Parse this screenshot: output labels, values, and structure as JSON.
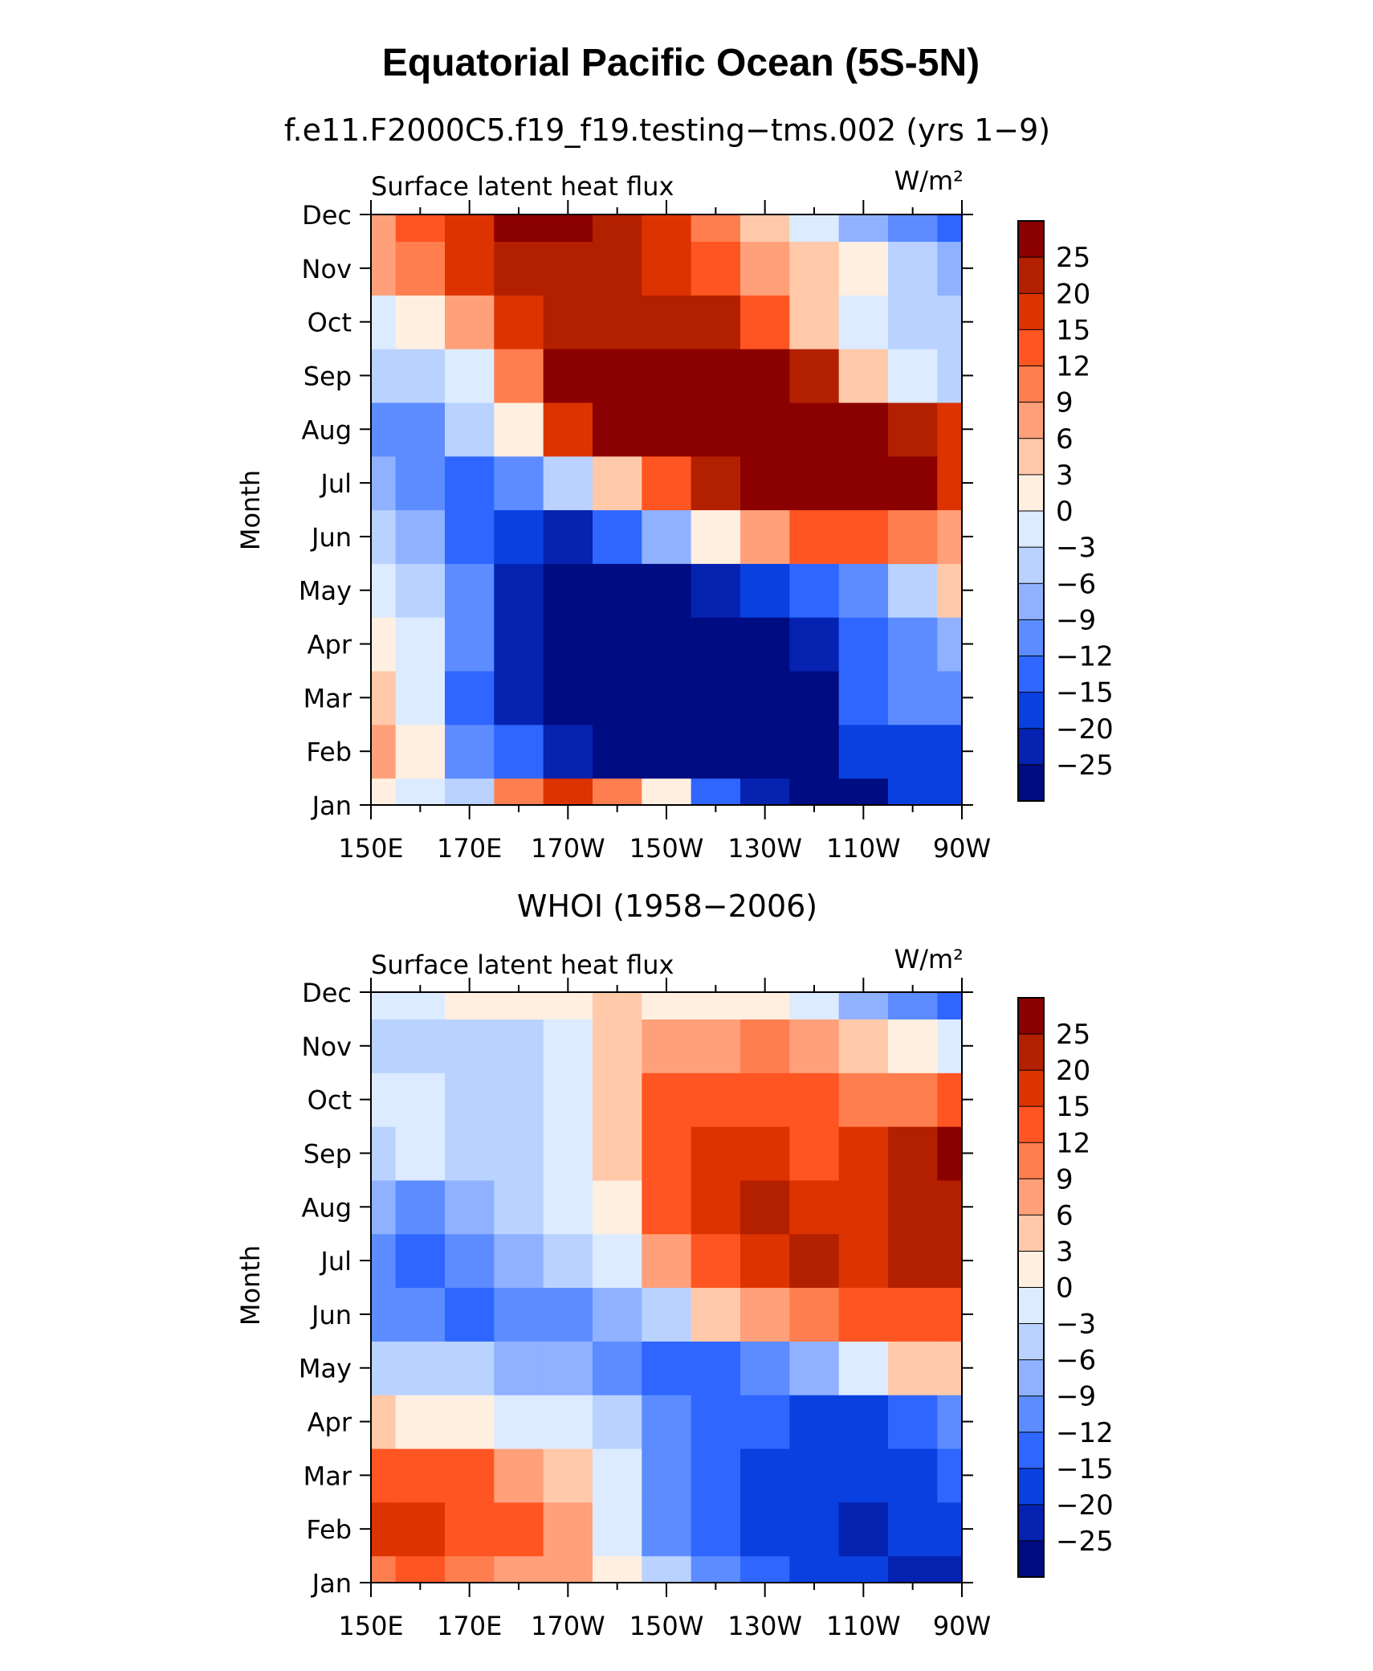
{
  "title": "Equatorial Pacific Ocean (5S-5N)",
  "colorbar": {
    "labels": [
      "25",
      "20",
      "15",
      "12",
      "9",
      "6",
      "3",
      "0",
      "−3",
      "−6",
      "−9",
      "−12",
      "−15",
      "−20",
      "−25"
    ],
    "colors": [
      "#8B0000",
      "#B22000",
      "#DD3300",
      "#FF5522",
      "#FF7E4F",
      "#FFA07A",
      "#FFC9AA",
      "#FFEFE0",
      "#DCEBFF",
      "#B9D2FF",
      "#8FB1FF",
      "#5C8CFF",
      "#2E66FF",
      "#0A40E0",
      "#0522B0",
      "#000C82"
    ]
  },
  "chart_data": [
    {
      "type": "heatmap",
      "title": "f.e11.F2000C5.f19_f19.testing−tms.002 (yrs 1−9)",
      "left_label": "Surface latent heat flux",
      "units": "W/m²",
      "xlabel": "",
      "ylabel": "Month",
      "x_ticks": [
        "150E",
        "170E",
        "170W",
        "150W",
        "130W",
        "110W",
        "90W"
      ],
      "y_ticks": [
        "Jan",
        "Feb",
        "Mar",
        "Apr",
        "May",
        "Jun",
        "Jul",
        "Aug",
        "Sep",
        "Oct",
        "Nov",
        "Dec"
      ],
      "x_lon": [
        150,
        160,
        170,
        180,
        190,
        200,
        210,
        220,
        230,
        240,
        250,
        260,
        270
      ],
      "values": [
        [
          2,
          -2,
          -5,
          10,
          18,
          10,
          0,
          -15,
          -25,
          -28,
          -30,
          -20,
          -18
        ],
        [
          8,
          0,
          -12,
          -15,
          -25,
          -28,
          -28,
          -28,
          -28,
          -28,
          -20,
          -18,
          -18
        ],
        [
          3,
          -3,
          -15,
          -25,
          -28,
          -28,
          -28,
          -28,
          -28,
          -28,
          -15,
          -12,
          -12
        ],
        [
          2,
          -2,
          -12,
          -25,
          -28,
          -28,
          -28,
          -28,
          -28,
          -25,
          -15,
          -10,
          -8
        ],
        [
          -2,
          -5,
          -12,
          -25,
          -28,
          -28,
          -28,
          -25,
          -20,
          -15,
          -10,
          -5,
          5
        ],
        [
          -5,
          -8,
          -15,
          -20,
          -22,
          -15,
          -8,
          0,
          6,
          12,
          12,
          10,
          8
        ],
        [
          -8,
          -10,
          -15,
          -12,
          -5,
          3,
          12,
          20,
          26,
          28,
          26,
          25,
          18
        ],
        [
          -12,
          -10,
          -5,
          0,
          15,
          28,
          28,
          28,
          28,
          28,
          25,
          20,
          18
        ],
        [
          -5,
          -5,
          -3,
          10,
          25,
          28,
          28,
          28,
          25,
          22,
          3,
          -3,
          -5
        ],
        [
          -3,
          2,
          8,
          15,
          22,
          24,
          22,
          20,
          12,
          5,
          -2,
          -6,
          -4
        ],
        [
          6,
          10,
          15,
          22,
          24,
          20,
          18,
          12,
          6,
          3,
          0,
          -5,
          -8
        ],
        [
          8,
          12,
          18,
          28,
          28,
          24,
          16,
          10,
          4,
          -3,
          -8,
          -12,
          -14
        ]
      ]
    },
    {
      "type": "heatmap",
      "title": "WHOI (1958−2006)",
      "left_label": "Surface latent heat flux",
      "units": "W/m²",
      "xlabel": "",
      "ylabel": "Month",
      "x_ticks": [
        "150E",
        "170E",
        "170W",
        "150W",
        "130W",
        "110W",
        "90W"
      ],
      "y_ticks": [
        "Jan",
        "Feb",
        "Mar",
        "Apr",
        "May",
        "Jun",
        "Jul",
        "Aug",
        "Sep",
        "Oct",
        "Nov",
        "Dec"
      ],
      "x_lon": [
        150,
        160,
        170,
        180,
        190,
        200,
        210,
        220,
        230,
        240,
        250,
        260,
        270
      ],
      "values": [
        [
          10,
          12,
          10,
          8,
          6,
          0,
          -6,
          -12,
          -15,
          -18,
          -20,
          -22,
          -25
        ],
        [
          15,
          16,
          14,
          12,
          6,
          -2,
          -10,
          -15,
          -18,
          -20,
          -22,
          -20,
          -20
        ],
        [
          12,
          14,
          12,
          8,
          3,
          -3,
          -12,
          -15,
          -18,
          -18,
          -18,
          -18,
          -15
        ],
        [
          4,
          2,
          0,
          -3,
          -3,
          -5,
          -12,
          -15,
          -15,
          -18,
          -18,
          -15,
          -10
        ],
        [
          -5,
          -6,
          -5,
          -8,
          -8,
          -10,
          -15,
          -15,
          -12,
          -8,
          -3,
          3,
          5
        ],
        [
          -10,
          -12,
          -14,
          -12,
          -10,
          -8,
          -5,
          3,
          8,
          10,
          12,
          14,
          14
        ],
        [
          -12,
          -15,
          -12,
          -8,
          -5,
          -2,
          8,
          14,
          18,
          20,
          18,
          20,
          20
        ],
        [
          -8,
          -10,
          -8,
          -5,
          -3,
          2,
          12,
          16,
          20,
          16,
          18,
          20,
          22
        ],
        [
          -4,
          -3,
          -5,
          -5,
          -3,
          3,
          14,
          16,
          18,
          14,
          18,
          22,
          25
        ],
        [
          -3,
          -2,
          -4,
          -6,
          -3,
          3,
          12,
          14,
          14,
          12,
          10,
          10,
          12
        ],
        [
          -4,
          -5,
          -6,
          -4,
          -2,
          3,
          6,
          8,
          10,
          6,
          3,
          0,
          -3
        ],
        [
          -2,
          -1,
          0,
          1,
          1,
          3,
          2,
          1,
          0,
          -3,
          -8,
          -12,
          -15
        ]
      ]
    }
  ]
}
